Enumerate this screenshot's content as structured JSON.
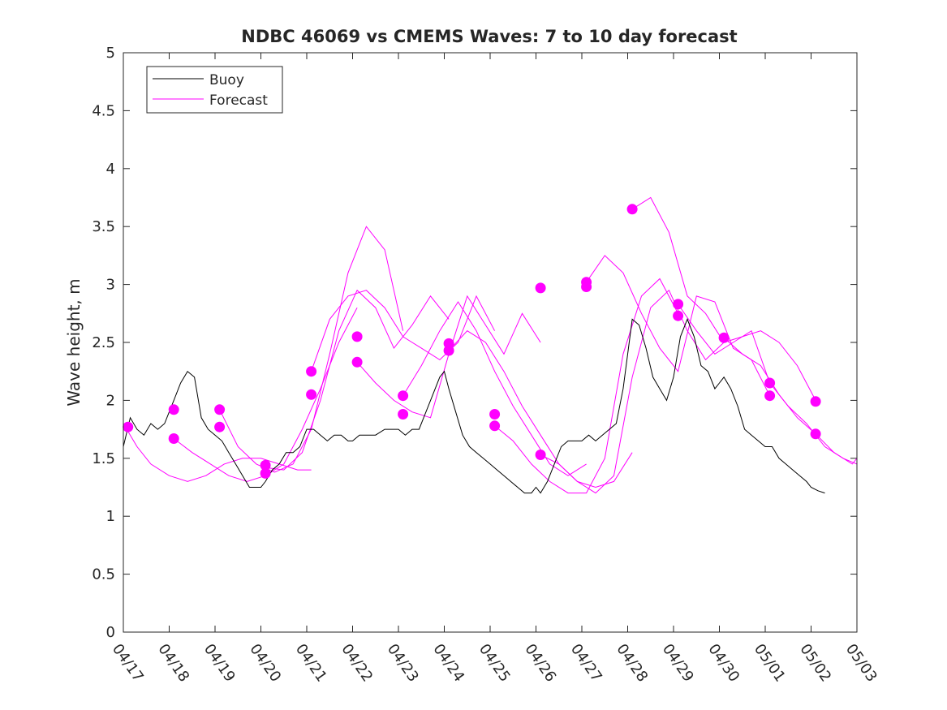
{
  "chart_data": {
    "type": "line",
    "title": "NDBC 46069 vs CMEMS Waves: 7 to 10 day forecast",
    "xlabel": "",
    "ylabel": "Wave height, m",
    "xlim": [
      0,
      16
    ],
    "ylim": [
      0,
      5
    ],
    "x_ticks": [
      0,
      1,
      2,
      3,
      4,
      5,
      6,
      7,
      8,
      9,
      10,
      11,
      12,
      13,
      14,
      15,
      16
    ],
    "x_tick_labels": [
      "04/17",
      "04/18",
      "04/19",
      "04/20",
      "04/21",
      "04/22",
      "04/23",
      "04/24",
      "04/25",
      "04/26",
      "04/27",
      "04/28",
      "04/29",
      "04/30",
      "05/01",
      "05/02",
      "05/03"
    ],
    "y_ticks": [
      0,
      0.5,
      1,
      1.5,
      2,
      2.5,
      3,
      3.5,
      4,
      4.5,
      5
    ],
    "y_tick_labels": [
      "0",
      "0.5",
      "1",
      "1.5",
      "2",
      "2.5",
      "3",
      "3.5",
      "4",
      "4.5",
      "5"
    ],
    "grid": false,
    "legend": {
      "placement": "top-left",
      "entries": [
        {
          "label": "Buoy",
          "color": "#000000"
        },
        {
          "label": "Forecast",
          "color": "#ff00ff"
        }
      ]
    },
    "colors": {
      "buoy": "#000000",
      "forecast": "#ff00ff"
    },
    "buoy": {
      "name": "Buoy",
      "x": [
        0,
        0.15,
        0.3,
        0.45,
        0.6,
        0.75,
        0.9,
        1.0,
        1.1,
        1.25,
        1.4,
        1.55,
        1.7,
        1.85,
        2.0,
        2.15,
        2.3,
        2.45,
        2.6,
        2.75,
        2.9,
        3.0,
        3.1,
        3.25,
        3.4,
        3.55,
        3.7,
        3.85,
        4.0,
        4.15,
        4.3,
        4.45,
        4.6,
        4.75,
        4.9,
        5.0,
        5.15,
        5.3,
        5.5,
        5.7,
        5.85,
        6.0,
        6.15,
        6.3,
        6.45,
        6.6,
        6.75,
        6.9,
        7.0,
        7.1,
        7.25,
        7.4,
        7.55,
        7.7,
        7.85,
        8.0,
        8.15,
        8.3,
        8.45,
        8.6,
        8.75,
        8.9,
        9.0,
        9.1,
        9.25,
        9.4,
        9.55,
        9.7,
        9.85,
        10.0,
        10.15,
        10.3,
        10.45,
        10.6,
        10.75,
        10.9,
        11.0,
        11.1,
        11.25,
        11.4,
        11.55,
        11.7,
        11.85,
        12.0,
        12.15,
        12.3,
        12.45,
        12.6,
        12.75,
        12.9,
        13.0,
        13.1,
        13.25,
        13.4,
        13.55,
        13.7,
        13.85,
        14.0,
        14.15,
        14.3,
        14.45,
        14.6,
        14.75,
        14.9,
        15.0,
        15.15,
        15.3
      ],
      "values": [
        1.6,
        1.85,
        1.75,
        1.7,
        1.8,
        1.75,
        1.8,
        1.9,
        2.0,
        2.15,
        2.25,
        2.2,
        1.85,
        1.75,
        1.7,
        1.65,
        1.55,
        1.45,
        1.35,
        1.25,
        1.25,
        1.25,
        1.3,
        1.4,
        1.45,
        1.55,
        1.55,
        1.6,
        1.75,
        1.75,
        1.7,
        1.65,
        1.7,
        1.7,
        1.65,
        1.65,
        1.7,
        1.7,
        1.7,
        1.75,
        1.75,
        1.75,
        1.7,
        1.75,
        1.75,
        1.9,
        2.05,
        2.2,
        2.25,
        2.1,
        1.9,
        1.7,
        1.6,
        1.55,
        1.5,
        1.45,
        1.4,
        1.35,
        1.3,
        1.25,
        1.2,
        1.2,
        1.25,
        1.2,
        1.3,
        1.45,
        1.6,
        1.65,
        1.65,
        1.65,
        1.7,
        1.65,
        1.7,
        1.75,
        1.8,
        2.1,
        2.4,
        2.7,
        2.65,
        2.45,
        2.2,
        2.1,
        2.0,
        2.2,
        2.55,
        2.7,
        2.55,
        2.3,
        2.25,
        2.1,
        2.15,
        2.2,
        2.1,
        1.95,
        1.75,
        1.7,
        1.65,
        1.6,
        1.6,
        1.5,
        1.45,
        1.4,
        1.35,
        1.3,
        1.25,
        1.22,
        1.2
      ]
    },
    "forecast_series": [
      {
        "x": [
          0,
          0.3,
          0.6,
          1.0,
          1.4,
          1.8,
          2.2,
          2.6,
          3.0,
          3.4,
          3.8,
          4.1
        ],
        "values": [
          1.8,
          1.6,
          1.45,
          1.35,
          1.3,
          1.35,
          1.45,
          1.5,
          1.5,
          1.45,
          1.4,
          1.4
        ]
      },
      {
        "x": [
          1.1,
          1.5,
          1.9,
          2.3,
          2.7,
          3.1,
          3.5,
          3.9,
          4.3,
          4.7,
          5.1
        ],
        "values": [
          1.67,
          1.55,
          1.45,
          1.35,
          1.3,
          1.35,
          1.45,
          1.75,
          2.1,
          2.5,
          2.8
        ]
      },
      {
        "x": [
          2.1,
          2.5,
          2.9,
          3.3,
          3.7,
          4.1,
          4.5,
          4.9,
          5.3,
          5.7,
          6.1
        ],
        "values": [
          1.92,
          1.6,
          1.45,
          1.38,
          1.45,
          1.75,
          2.4,
          3.1,
          3.5,
          3.3,
          2.6
        ]
      },
      {
        "x": [
          3.1,
          3.5,
          3.9,
          4.3,
          4.7,
          5.1,
          5.5,
          5.9,
          6.3,
          6.7,
          7.1
        ],
        "values": [
          1.42,
          1.4,
          1.55,
          2.0,
          2.6,
          2.95,
          2.8,
          2.45,
          2.65,
          2.9,
          2.7
        ]
      },
      {
        "x": [
          4.1,
          4.5,
          4.9,
          5.3,
          5.7,
          6.1,
          6.5,
          6.9,
          7.3,
          7.7,
          8.1
        ],
        "values": [
          2.25,
          2.7,
          2.9,
          2.95,
          2.8,
          2.55,
          2.45,
          2.35,
          2.5,
          2.9,
          2.6
        ]
      },
      {
        "x": [
          5.1,
          5.5,
          5.9,
          6.3,
          6.7,
          7.1,
          7.5,
          7.9,
          8.3,
          8.7,
          9.1
        ],
        "values": [
          2.33,
          2.15,
          2.0,
          1.9,
          1.85,
          2.4,
          2.9,
          2.65,
          2.4,
          2.75,
          2.5
        ]
      },
      {
        "x": [
          6.1,
          6.5,
          6.9,
          7.3,
          7.7,
          8.1,
          8.5,
          8.9,
          9.3,
          9.7,
          10.1
        ],
        "values": [
          2.04,
          2.3,
          2.6,
          2.85,
          2.6,
          2.25,
          1.95,
          1.7,
          1.45,
          1.35,
          1.45
        ]
      },
      {
        "x": [
          7.1,
          7.5,
          7.9,
          8.3,
          8.7,
          9.1,
          9.5,
          9.9,
          10.3,
          10.7,
          11.1
        ],
        "values": [
          2.43,
          2.6,
          2.5,
          2.25,
          1.95,
          1.7,
          1.45,
          1.3,
          1.25,
          1.3,
          1.55
        ]
      },
      {
        "x": [
          8.1,
          8.5,
          8.9,
          9.3,
          9.7,
          10.1,
          10.5,
          10.9,
          11.3,
          11.7,
          12.1
        ],
        "values": [
          1.78,
          1.65,
          1.45,
          1.3,
          1.2,
          1.2,
          1.5,
          2.4,
          2.9,
          3.05,
          2.75
        ]
      },
      {
        "x": [
          9.1,
          9.5,
          9.9,
          10.3,
          10.7,
          11.1,
          11.5,
          11.9,
          12.3,
          12.7,
          13.1
        ],
        "values": [
          1.53,
          1.45,
          1.3,
          1.2,
          1.35,
          2.2,
          2.8,
          2.95,
          2.6,
          2.35,
          2.5
        ]
      },
      {
        "x": [
          10.1,
          10.5,
          10.9,
          11.3,
          11.7,
          12.1,
          12.5,
          12.9,
          13.3,
          13.7,
          14.1
        ],
        "values": [
          3.02,
          3.25,
          3.1,
          2.75,
          2.45,
          2.25,
          2.9,
          2.85,
          2.45,
          2.35,
          2.04
        ]
      },
      {
        "x": [
          11.1,
          11.5,
          11.9,
          12.3,
          12.7,
          13.1,
          13.5,
          13.9,
          14.3,
          14.7,
          15.1
        ],
        "values": [
          3.65,
          3.75,
          3.45,
          2.9,
          2.75,
          2.5,
          2.55,
          2.6,
          2.5,
          2.3,
          2.0
        ]
      },
      {
        "x": [
          12.1,
          12.5,
          12.9,
          13.3,
          13.7,
          14.1,
          14.5,
          14.9,
          15.3,
          15.7,
          16.0
        ],
        "values": [
          2.83,
          2.6,
          2.4,
          2.5,
          2.6,
          2.15,
          1.95,
          1.8,
          1.6,
          1.5,
          1.45
        ]
      },
      {
        "x": [
          13.1,
          13.5,
          13.9,
          14.3,
          14.7,
          15.1,
          15.5,
          15.9,
          16.0
        ],
        "values": [
          2.54,
          2.4,
          2.3,
          2.05,
          1.85,
          1.71,
          1.55,
          1.45,
          1.5
        ]
      }
    ],
    "forecast_markers": [
      {
        "x": 0.1,
        "y": 1.77
      },
      {
        "x": 1.1,
        "y": 1.92
      },
      {
        "x": 1.1,
        "y": 1.67
      },
      {
        "x": 2.1,
        "y": 1.92
      },
      {
        "x": 2.1,
        "y": 1.77
      },
      {
        "x": 3.1,
        "y": 1.44
      },
      {
        "x": 3.1,
        "y": 1.37
      },
      {
        "x": 4.1,
        "y": 2.25
      },
      {
        "x": 4.1,
        "y": 2.05
      },
      {
        "x": 5.1,
        "y": 2.55
      },
      {
        "x": 5.1,
        "y": 2.33
      },
      {
        "x": 6.1,
        "y": 2.04
      },
      {
        "x": 6.1,
        "y": 1.88
      },
      {
        "x": 7.1,
        "y": 2.49
      },
      {
        "x": 7.1,
        "y": 2.43
      },
      {
        "x": 8.1,
        "y": 1.88
      },
      {
        "x": 8.1,
        "y": 1.78
      },
      {
        "x": 9.1,
        "y": 2.97
      },
      {
        "x": 9.1,
        "y": 1.53
      },
      {
        "x": 10.1,
        "y": 3.02
      },
      {
        "x": 10.1,
        "y": 2.98
      },
      {
        "x": 11.1,
        "y": 3.65
      },
      {
        "x": 12.1,
        "y": 2.83
      },
      {
        "x": 12.1,
        "y": 2.73
      },
      {
        "x": 13.1,
        "y": 2.54
      },
      {
        "x": 14.1,
        "y": 2.15
      },
      {
        "x": 14.1,
        "y": 2.04
      },
      {
        "x": 15.1,
        "y": 1.99
      },
      {
        "x": 15.1,
        "y": 1.71
      }
    ]
  }
}
